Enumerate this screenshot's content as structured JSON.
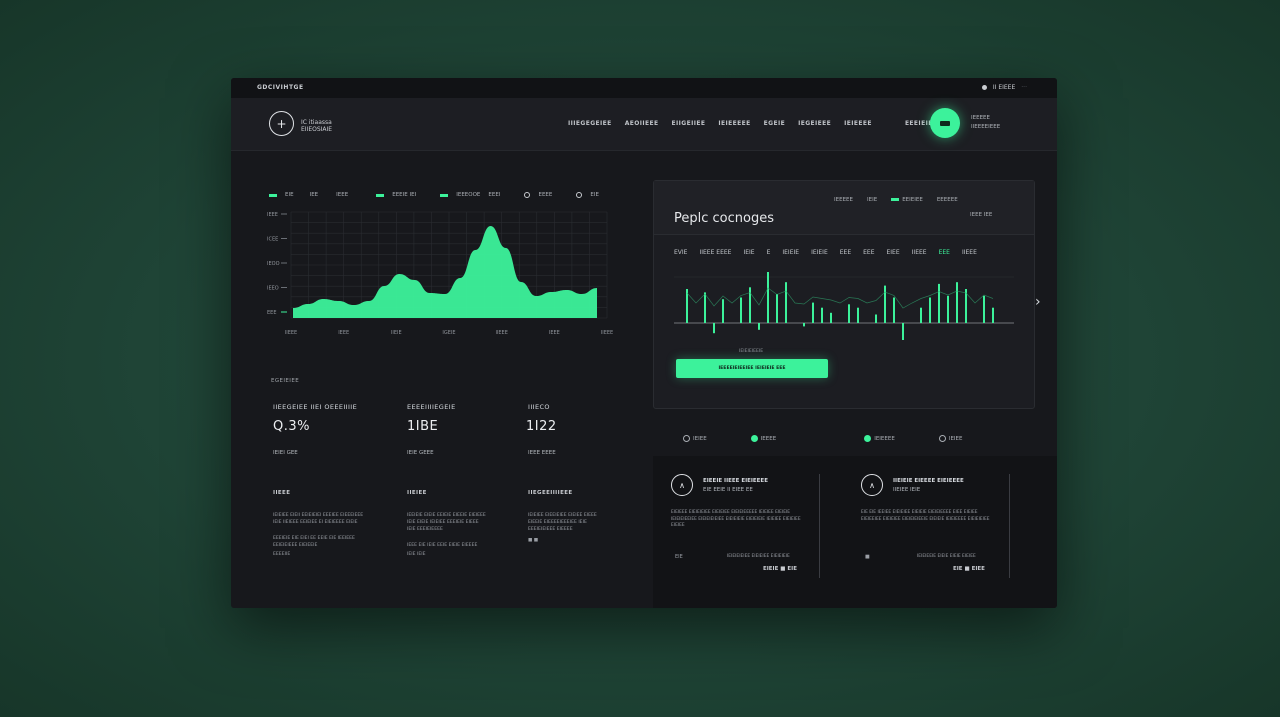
{
  "topbar": {
    "brand": "GDCIVIHTGE",
    "right_label": "II EIEEE",
    "right_dim": "···"
  },
  "navbar": {
    "logo_symbol": "+",
    "logo_line1": "IC itiaassa",
    "logo_line2": "EIIEOSIAIE",
    "items": [
      "IIIEGEGEIEE",
      "AEOIIEEE",
      "EIIGEIIEE",
      "IEIEEEEE",
      "EGEIE",
      "IEGEIEEE",
      "IEIEEEE",
      "EEEIEIEEE"
    ],
    "user_line1": "IEEEEE",
    "user_line2": "IIEEEEIEEE"
  },
  "left_chart": {
    "legend": [
      "EIE",
      "IEE",
      "IEEE",
      "EEEIE IEI",
      "IEEEOOE",
      "EEEI",
      "EEEE",
      "EIE"
    ],
    "y_ticks": [
      "IEEE",
      "ICEE",
      "IEOO",
      "IEEO",
      "EEE"
    ],
    "x_ticks": [
      "IIEEE",
      "IEEE",
      "IIEIE",
      "IGEIE",
      "IIEEE",
      "IEEE",
      "IIEEE"
    ]
  },
  "chart_data": {
    "type": "area",
    "x": [
      0,
      1,
      2,
      3,
      4,
      5,
      6,
      7,
      8,
      9,
      10,
      11,
      12,
      13,
      14,
      15,
      16,
      17,
      18,
      19,
      20
    ],
    "values": [
      10,
      14,
      19,
      17,
      13,
      17,
      32,
      44,
      38,
      25,
      24,
      40,
      68,
      92,
      70,
      36,
      22,
      26,
      28,
      24,
      30
    ],
    "ylim": [
      0,
      100
    ],
    "grid": true
  },
  "stats": {
    "caption": "EGEIEIEE",
    "items": [
      {
        "title": "IIEEGEIEE IIEI OEEEIIIIE",
        "value": "Q.3%",
        "sub": "IEIEI GEE"
      },
      {
        "title": "EEEEIIIIEGEIE",
        "value": "1IBE",
        "sub": "IEIE GEEE"
      },
      {
        "title": "IIIECO",
        "value": "1I22",
        "sub": "IEEE EEEE"
      }
    ]
  },
  "columns": [
    {
      "head": "IIEEE",
      "lines": [
        "IEIEIEE EIEII EEIEIEIEI EEEIEE EIEEEIEEE",
        "IEIE IIEIEEE EEIEIEE EI EIEIEEEE EIEIE",
        "EEEIEIE EIE EIEI EE EEIE EIE IEEIEEE",
        "EEIEIEIEEE EIEIEEIE",
        "EEEEIIE"
      ]
    },
    {
      "head": "IIEIEE",
      "lines": [
        "IEEIEIE EIEIE EEIEIE EIEEIE EIEIEEE",
        "IEIE EIEIE IEIEIEE EEEIEIE EIEEE",
        "IEIE EEEIEIEEEE",
        "IEEE EIE IEIE EEIE EIEIE EIEEEE",
        "IEIE IEIE"
      ]
    },
    {
      "head": "IIEGEEIIIIEEE",
      "lines": [
        "IEIEIEE EIEEIEIEE EIEIEE EIEEE",
        "EIEEIE EIEEEEIEEEIEE IEIE",
        "EEEIEIEIEEE EIEEEE",
        "■ ■"
      ]
    }
  ],
  "panel": {
    "title": "Peplc cocnoges",
    "tabs": [
      "IEEEEE",
      "IEIE",
      "EEIEIEE",
      "EEEEEE"
    ],
    "right_note": "IEEE IEE",
    "row": [
      "EVIE",
      "IIEEE EEEE",
      "IEIE",
      "E",
      "IEIEIE",
      "IEIEIE",
      "EEE",
      "EEE",
      "EIEE",
      "IIEEE",
      "EEE",
      "IIEEE"
    ],
    "row_highlight_index": 10,
    "small_label": "IEIEIEIEEIE",
    "button_label": "IEEEEIEIEEIEE IEIEIEIE EEE"
  },
  "bar_chart": {
    "values": [
      40,
      0,
      36,
      -12,
      28,
      0,
      30,
      42,
      -8,
      60,
      34,
      48,
      0,
      -4,
      24,
      18,
      12,
      0,
      22,
      18,
      0,
      10,
      44,
      30,
      -20,
      0,
      18,
      30,
      46,
      32,
      48,
      40,
      0,
      32,
      18
    ]
  },
  "panel_footer": [
    "IEIEE",
    "IEEEE",
    "IEIEEEE",
    "IEIEE"
  ],
  "cards": [
    {
      "icon": "∧",
      "title": "EIEEIE IIEEE EIEIEEEE",
      "subtitle": "EIE EEIE II EIEE EE",
      "body": "EIEIEEE EIEIEIEIEE EIEIEIEE EIEIEIEEEEE IEIEIEE EIEIEIE IEIEIEIEEIEE EIEIEIEIEIEE EIEIEIEIE EIEIEIEIE IEIEIEE EIEIEIEE EIEIEE",
      "foot_left": "EIE",
      "foot_mid": "IEIEIEIEIEE EIEIEIEE EIEIEIEIE",
      "foot_right": "EIEIE ■ EIE"
    },
    {
      "icon": "∧",
      "title": "IIEIEIE EIEEEE EIEIEEEE",
      "subtitle": "IIEIEE IEIE",
      "body": "EIE EIE IEEIEE EIEIEIEE EIEIEIE EIEIEIEEEE EIEE EIEIEE EIEIEEIEE EIEIEIEE EIEIEIEIEEIE EIEIEIE IEIEIEEEE EIEIEIEIEE",
      "foot_left": "■",
      "foot_mid": "IEIEIEEIE EIEIE EIEIE EIEIEE",
      "foot_right": "EIE ■ EIEE"
    }
  ],
  "colors": {
    "accent": "#3cf29b",
    "window": "#17181c",
    "background": "#1f4436"
  }
}
